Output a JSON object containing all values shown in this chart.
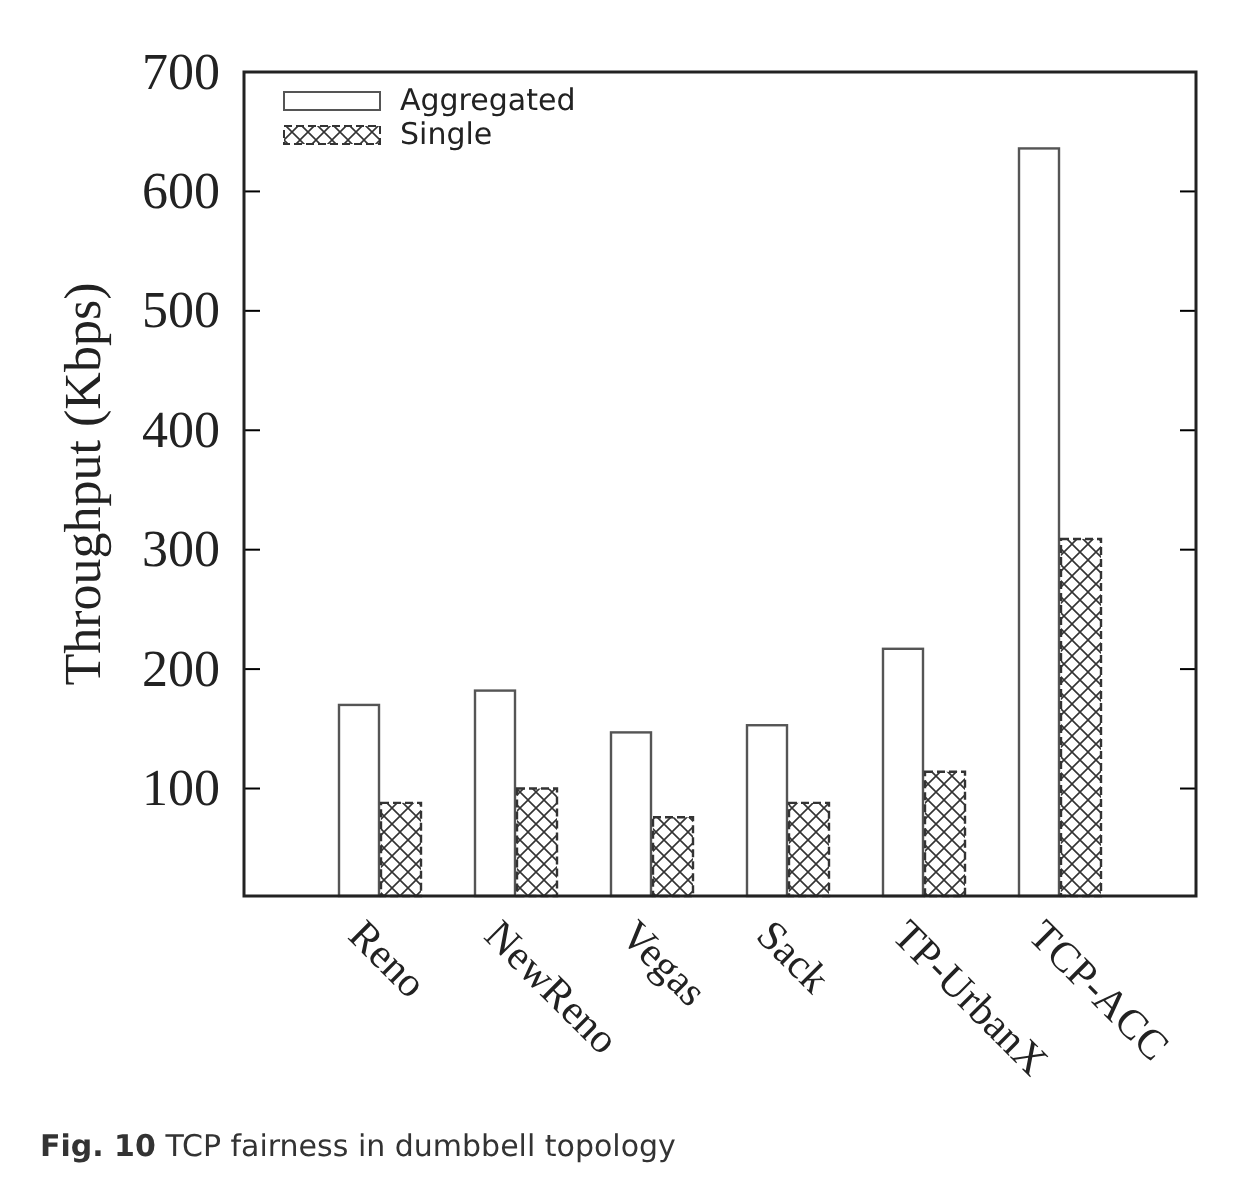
{
  "chart_data": {
    "type": "bar",
    "ylabel": "Throughput (Kbps)",
    "categories": [
      "Reno",
      "NewReno",
      "Vegas",
      "Sack",
      "TP-UrbanX",
      "TCP-ACC"
    ],
    "series": [
      {
        "name": "Aggregated",
        "color": "#ffffff",
        "values": [
          170,
          182,
          147,
          153,
          217,
          636
        ]
      },
      {
        "name": "Single",
        "color": "#333333",
        "line_style": "dashed",
        "values": [
          88,
          100,
          76,
          88,
          114,
          309
        ]
      }
    ],
    "ylim": [
      10,
      700
    ],
    "yticks": [
      100,
      200,
      300,
      400,
      500,
      600,
      700
    ],
    "legend": "top left",
    "annotations": [
      "Fig. 10 TCP fairness in dumbbell topology"
    ]
  }
}
